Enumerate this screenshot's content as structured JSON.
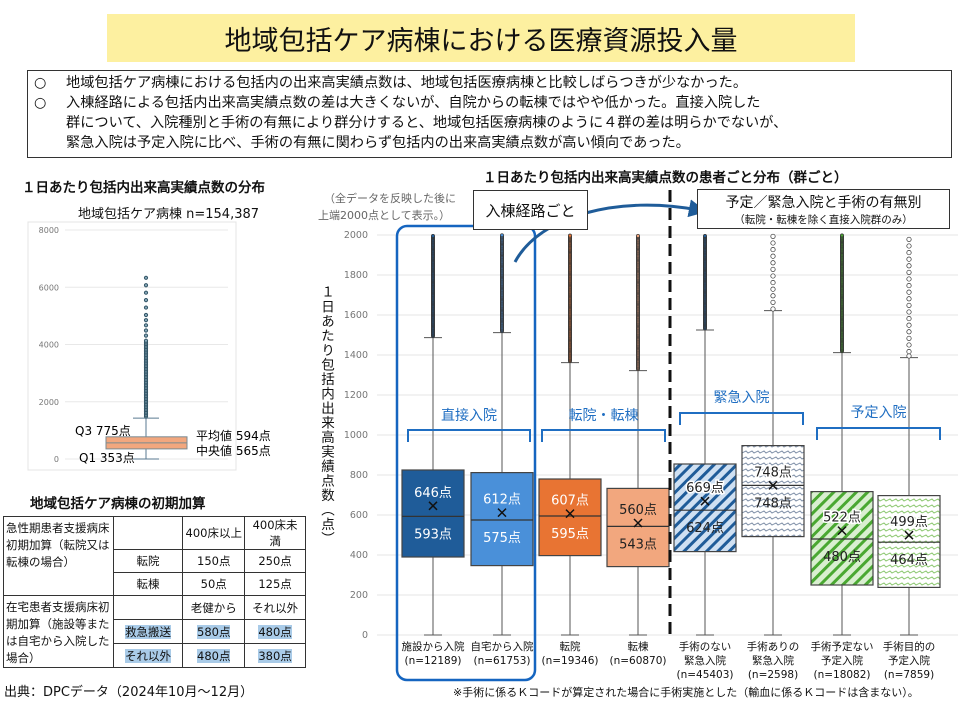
{
  "title": "地域包括ケア病棟における医療資源投入量",
  "summary": [
    "地域包括ケア病棟における包括内の出来高実績点数は、地域包括医療病棟と比較しばらつきが少なかった。",
    "入棟経路による包括内出来高実績点数の差は大きくないが、自院からの転棟ではやや低かった。直接入院した",
    "群について、入院種別と手術の有無により群分けすると、地域包括医療病棟のように４群の差は明らかでないが、",
    "緊急入院は予定入院に比べ、手術の有無に関わらず包括内の出来高実績点数が高い傾向であった。"
  ],
  "bullet": "○",
  "left_chart_title": "１日あたり包括内出来高実績点数の分布",
  "table": {
    "title": "地域包括ケア病棟の初期加算",
    "h1": [
      "",
      "400床以上",
      "400床未満"
    ],
    "g1_label": "急性期患者支援病床初期加算（転院又は転棟の場合）",
    "g1_rows": [
      [
        "転院",
        "150点",
        "250点"
      ],
      [
        "転棟",
        "50点",
        "125点"
      ]
    ],
    "h2": [
      "",
      "老健から",
      "それ以外"
    ],
    "g2_label": "在宅患者支援病床初期加算（施設等または自宅から入院した場合）",
    "g2_rows": [
      [
        "救急搬送",
        "580点",
        "480点"
      ],
      [
        "それ以外",
        "480点",
        "380点"
      ]
    ]
  },
  "source": "出典：DPCデータ（2024年10月～12月）",
  "right_chart_title": "１日あたり包括内出来高実績点数の患者ごと分布（群ごと）",
  "right_note": [
    "（全データを反映した後に",
    "上端2000点として表示。）"
  ],
  "callout_route": "入棟経路ごと",
  "callout_elective": "予定／緊急入院と手術の有無別",
  "callout_elective_sub": "（転院・転棟を除く直接入院群のみ）",
  "footnote": "※手術に係るＫコードが算定された場合に手術実施とした（輸血に係るＫコードは含まない）。",
  "colors": {
    "dark_blue": "#1f5c99",
    "light_blue": "#4a90d9",
    "orange": "#e87433",
    "light_orange": "#f2a77e",
    "green": "#4aa832",
    "accent": "#1f6ec2",
    "title_bg": "#fdf0a0"
  },
  "chart_data": [
    {
      "type": "box",
      "title": "地域包括ケア病棟 n=154,387",
      "ylim": [
        0,
        8000
      ],
      "yticks": [
        "0",
        "2000",
        "4000",
        "6000",
        "8000"
      ],
      "box": {
        "q1": 353,
        "median": 565,
        "mean": 594,
        "q3": 775,
        "whisker_low": 0,
        "whisker_high": 1430,
        "max_outlier": 6550,
        "color": "#f2a77e"
      },
      "labels": {
        "q3": "Q3 775点",
        "q1": "Q1 353点",
        "mean": "平均値 594点",
        "median": "中央値 565点"
      }
    },
    {
      "type": "box",
      "ylabel": "１日あたり包括内出来高実績点数（点）",
      "ylim": [
        0,
        2000
      ],
      "yticks": [
        "0",
        "200",
        "400",
        "600",
        "800",
        "1000",
        "1200",
        "1400",
        "1600",
        "1800",
        "2000"
      ],
      "groups": [
        {
          "label": "直接入院",
          "members": [
            0,
            1
          ]
        },
        {
          "label": "転院・転棟",
          "members": [
            2,
            3
          ]
        },
        {
          "label": "緊急入院",
          "members": [
            4,
            5
          ]
        },
        {
          "label": "予定入院",
          "members": [
            6,
            7
          ]
        }
      ],
      "series": [
        {
          "name": "施設から入院",
          "n": "(n=12189)",
          "q1": 390,
          "median": 593,
          "mean": 646,
          "q3": 825,
          "whisker_low": 0,
          "whisker_high": 1487,
          "mean_label": "646点",
          "median_label": "593点",
          "color": "#1f5c99",
          "style": "solid",
          "text": "#fff"
        },
        {
          "name": "自宅から入院",
          "n": "(n=61753)",
          "q1": 347,
          "median": 575,
          "mean": 612,
          "q3": 812,
          "whisker_low": 0,
          "whisker_high": 1512,
          "mean_label": "612点",
          "median_label": "575点",
          "color": "#4a90d9",
          "style": "solid",
          "text": "#fff"
        },
        {
          "name": "転院",
          "n": "(n=19346)",
          "q1": 397,
          "median": 595,
          "mean": 607,
          "q3": 780,
          "whisker_low": 0,
          "whisker_high": 1362,
          "mean_label": "607点",
          "median_label": "595点",
          "color": "#e87433",
          "style": "solid",
          "text": "#fff"
        },
        {
          "name": "転棟",
          "n": "(n=60870)",
          "q1": 342,
          "median": 543,
          "mean": 560,
          "q3": 733,
          "whisker_low": 0,
          "whisker_high": 1322,
          "mean_label": "560点",
          "median_label": "543点",
          "color": "#f2a77e",
          "style": "solid",
          "text": "#222"
        },
        {
          "name": "手術のない緊急入院",
          "n": "(n=45403)",
          "q1": 417,
          "median": 624,
          "mean": 669,
          "q3": 855,
          "whisker_low": 0,
          "whisker_high": 1525,
          "mean_label": "669点",
          "median_label": "624点",
          "color": "#1f5c99",
          "style": "hatch-wide",
          "text": "#222"
        },
        {
          "name": "手術ありの緊急入院",
          "n": "(n=2598)",
          "q1": 492,
          "median": 748,
          "mean": 748,
          "q3": 947,
          "whisker_low": 0,
          "whisker_high": 1622,
          "mean_label": "748点",
          "median_label": "748点",
          "color": "#5a6a80",
          "style": "hatch-fine",
          "text": "#222"
        },
        {
          "name": "手術予定ない予定入院",
          "n": "(n=18082)",
          "q1": 250,
          "median": 480,
          "mean": 522,
          "q3": 717,
          "whisker_low": 0,
          "whisker_high": 1412,
          "mean_label": "522点",
          "median_label": "480点",
          "color": "#4aa832",
          "style": "hatch-wide",
          "text": "#222"
        },
        {
          "name": "手術目的の予定入院",
          "n": "(n=7859)",
          "q1": 238,
          "median": 464,
          "mean": 499,
          "q3": 697,
          "whisker_low": 0,
          "whisker_high": 1387,
          "mean_label": "499点",
          "median_label": "464点",
          "color": "#7cc060",
          "style": "hatch-fine",
          "text": "#222"
        }
      ]
    }
  ]
}
